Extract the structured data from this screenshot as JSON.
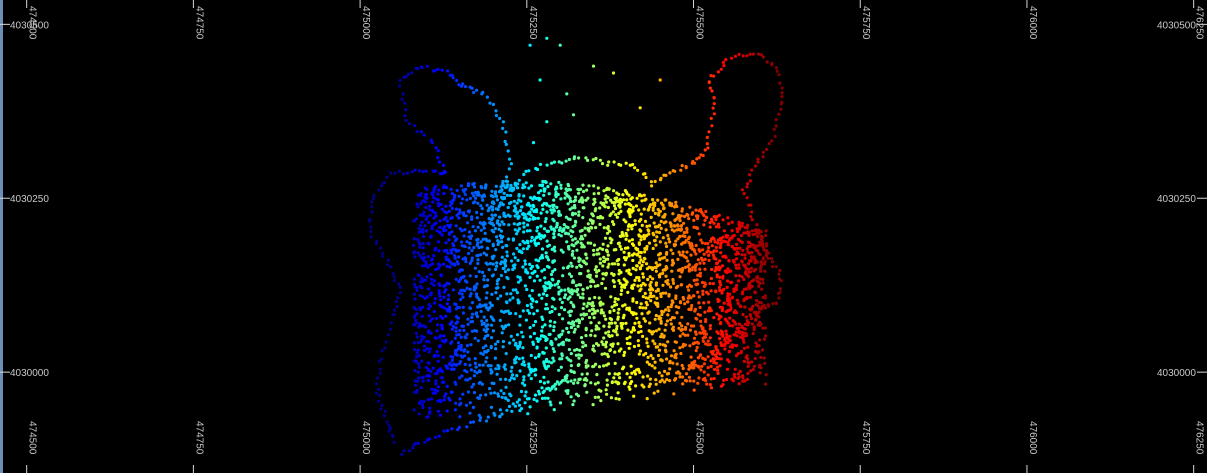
{
  "chart_data": {
    "type": "scatter",
    "title": "",
    "xlabel": "",
    "ylabel": "",
    "xlim": [
      474460,
      476270
    ],
    "ylim": [
      4029855,
      4030535
    ],
    "grid": false,
    "legend": "none",
    "colormap": "jet (blue to red by easting)",
    "x_ticks": [
      474500,
      474750,
      475000,
      475250,
      475500,
      475750,
      476000,
      476250
    ],
    "x_tick_labels": [
      "474500",
      "474750",
      "475000",
      "475250",
      "475500",
      "475750",
      "476000",
      "476250"
    ],
    "y_ticks": [
      4030000,
      4030250,
      4030500
    ],
    "y_tick_labels": [
      "4030000",
      "4030250",
      "4030500"
    ],
    "series": [
      {
        "outline_points": [
          [
            475050,
            4029900
          ],
          [
            475040,
            4029930
          ],
          [
            475025,
            4029970
          ],
          [
            475030,
            4030020
          ],
          [
            475050,
            4030080
          ],
          [
            475060,
            4030120
          ],
          [
            475040,
            4030160
          ],
          [
            475015,
            4030200
          ],
          [
            475020,
            4030250
          ],
          [
            475045,
            4030285
          ],
          [
            475090,
            4030290
          ],
          [
            475130,
            4030285
          ],
          [
            475110,
            4030330
          ],
          [
            475070,
            4030360
          ],
          [
            475060,
            4030420
          ],
          [
            475090,
            4030440
          ],
          [
            475130,
            4030430
          ],
          [
            475155,
            4030410
          ],
          [
            475185,
            4030400
          ],
          [
            475215,
            4030360
          ],
          [
            475225,
            4030300
          ],
          [
            475210,
            4030240
          ],
          [
            475250,
            4030290
          ],
          [
            475290,
            4030300
          ],
          [
            475330,
            4030310
          ],
          [
            475370,
            4030300
          ],
          [
            475410,
            4030300
          ],
          [
            475440,
            4030270
          ],
          [
            475470,
            4030290
          ],
          [
            475500,
            4030300
          ],
          [
            475520,
            4030320
          ],
          [
            475530,
            4030380
          ],
          [
            475525,
            4030420
          ],
          [
            475550,
            4030450
          ],
          [
            475590,
            4030460
          ],
          [
            475625,
            4030440
          ],
          [
            475635,
            4030390
          ],
          [
            475620,
            4030340
          ],
          [
            475595,
            4030300
          ],
          [
            475575,
            4030260
          ],
          [
            475590,
            4030220
          ],
          [
            475610,
            4030170
          ],
          [
            475630,
            4030140
          ],
          [
            475625,
            4030100
          ],
          [
            475600,
            4030090
          ],
          [
            475570,
            4030060
          ],
          [
            475540,
            4030040
          ],
          [
            475510,
            4030010
          ],
          [
            475470,
            4029990
          ],
          [
            475420,
            4029980
          ],
          [
            475360,
            4029985
          ],
          [
            475310,
            4029990
          ],
          [
            475270,
            4029970
          ],
          [
            475230,
            4029945
          ],
          [
            475180,
            4029930
          ],
          [
            475130,
            4029915
          ],
          [
            475090,
            4029900
          ],
          [
            475060,
            4029880
          ]
        ],
        "sparse_points": [
          [
            475255,
            4030470
          ],
          [
            475280,
            4030480
          ],
          [
            475300,
            4030470
          ],
          [
            475270,
            4030420
          ],
          [
            475310,
            4030400
          ],
          [
            475280,
            4030360
          ],
          [
            475320,
            4030370
          ],
          [
            475350,
            4030440
          ],
          [
            475380,
            4030430
          ],
          [
            475260,
            4030330
          ],
          [
            475255,
            4029950
          ],
          [
            475100,
            4030250
          ],
          [
            475150,
            4030230
          ],
          [
            475175,
            4030190
          ],
          [
            475450,
            4030420
          ],
          [
            475420,
            4030380
          ]
        ],
        "cluster_density": "dense",
        "core_region": {
          "x": [
            475050,
            475620
          ],
          "y": [
            4029900,
            4030300
          ]
        }
      }
    ]
  }
}
